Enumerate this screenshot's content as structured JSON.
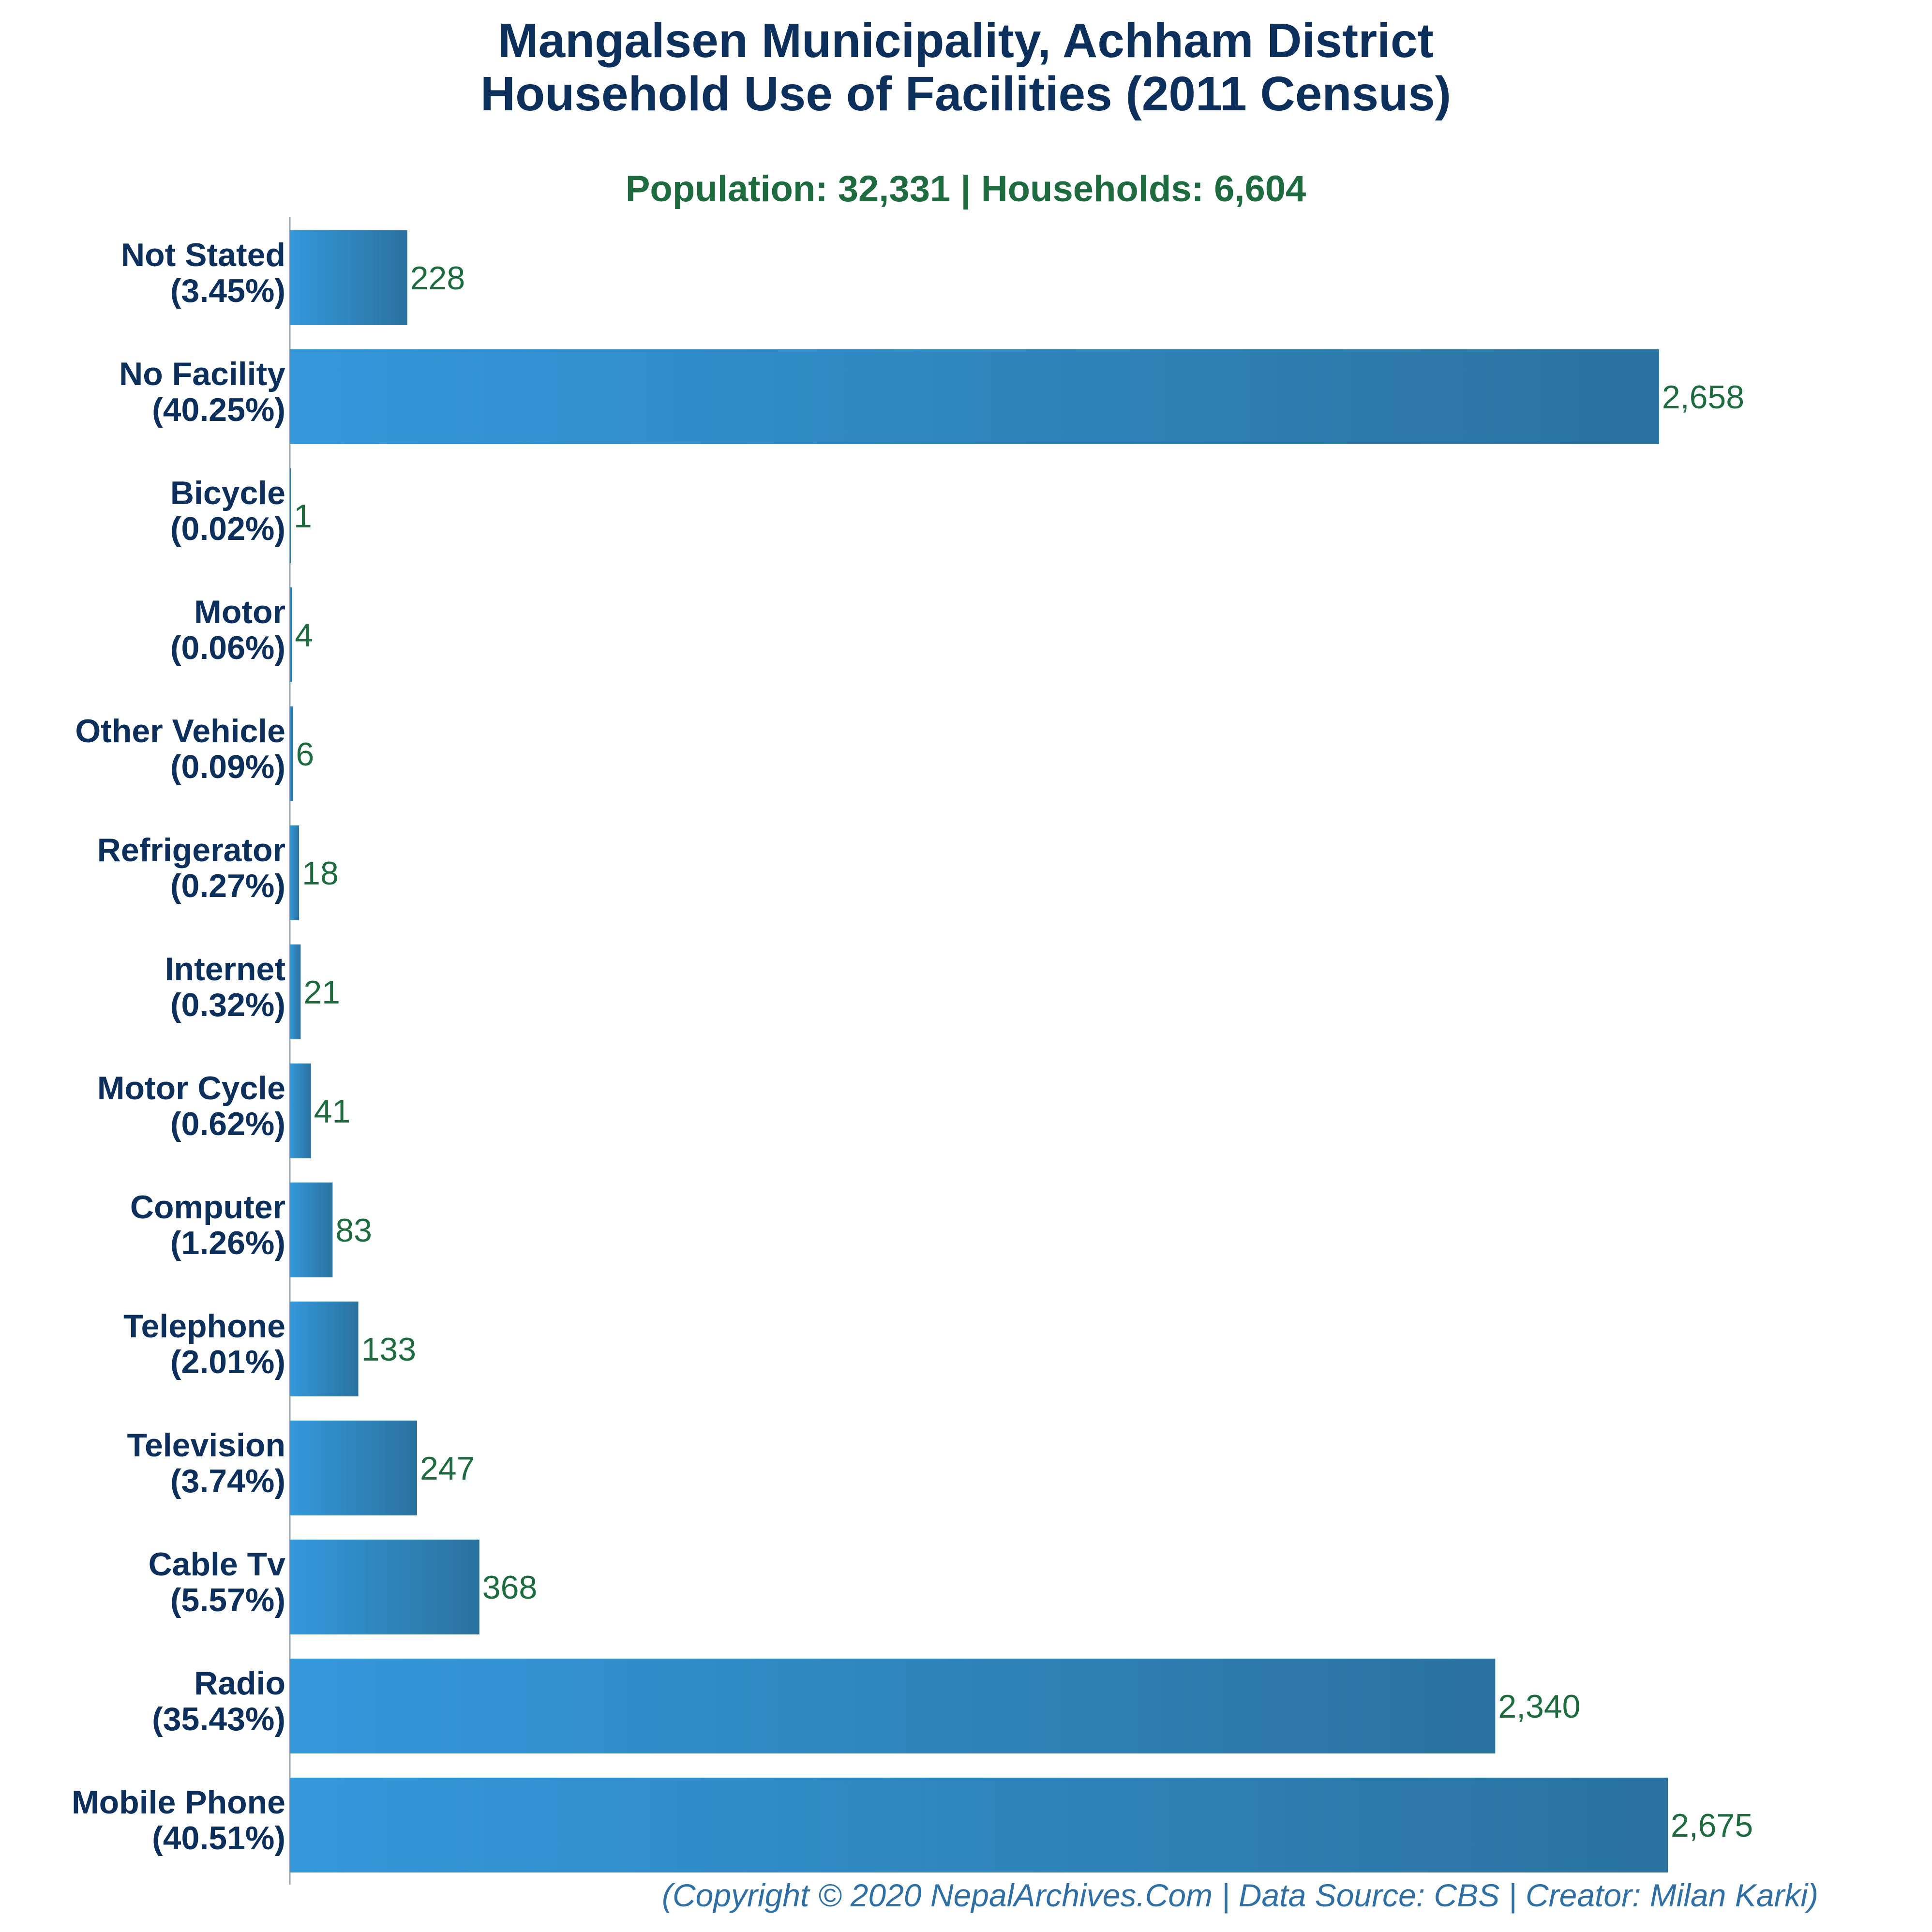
{
  "header": {
    "title_line1": "Mangalsen Municipality, Achham District",
    "title_line2": "Household Use of Facilities (2011 Census)",
    "subtitle": "Population: 32,331 | Households: 6,604"
  },
  "footer": {
    "text": "(Copyright © 2020 NepalArchives.Com | Data Source: CBS | Creator: Milan Karki)"
  },
  "colors": {
    "bar_start": "#3498db",
    "bar_end": "#2a729f",
    "title": "#0d2f5c",
    "subtitle": "#1e6b3f",
    "value_label": "#1e6b3f",
    "footer": "#2f6fa3"
  },
  "chart_data": {
    "type": "bar",
    "orientation": "horizontal",
    "categories": [
      "Not Stated",
      "No Facility",
      "Bicycle",
      "Motor",
      "Other Vehicle",
      "Refrigerator",
      "Internet",
      "Motor Cycle",
      "Computer",
      "Telephone",
      "Television",
      "Cable Tv",
      "Radio",
      "Mobile Phone"
    ],
    "percent_labels": [
      "(3.45%)",
      "(40.25%)",
      "(0.02%)",
      "(0.06%)",
      "(0.09%)",
      "(0.27%)",
      "(0.32%)",
      "(0.62%)",
      "(1.26%)",
      "(2.01%)",
      "(3.74%)",
      "(5.57%)",
      "(35.43%)",
      "(40.51%)"
    ],
    "values": [
      228,
      2658,
      1,
      4,
      6,
      18,
      21,
      41,
      83,
      133,
      247,
      368,
      2340,
      2675
    ],
    "value_labels": [
      "228",
      "2,658",
      "1",
      "4",
      "6",
      "18",
      "21",
      "41",
      "83",
      "133",
      "247",
      "368",
      "2,340",
      "2,675"
    ],
    "title": "Mangalsen Municipality, Achham District Household Use of Facilities (2011 Census)",
    "xlabel": "",
    "ylabel": "",
    "xlim": [
      0,
      2675
    ],
    "grid": false,
    "legend": "none"
  }
}
